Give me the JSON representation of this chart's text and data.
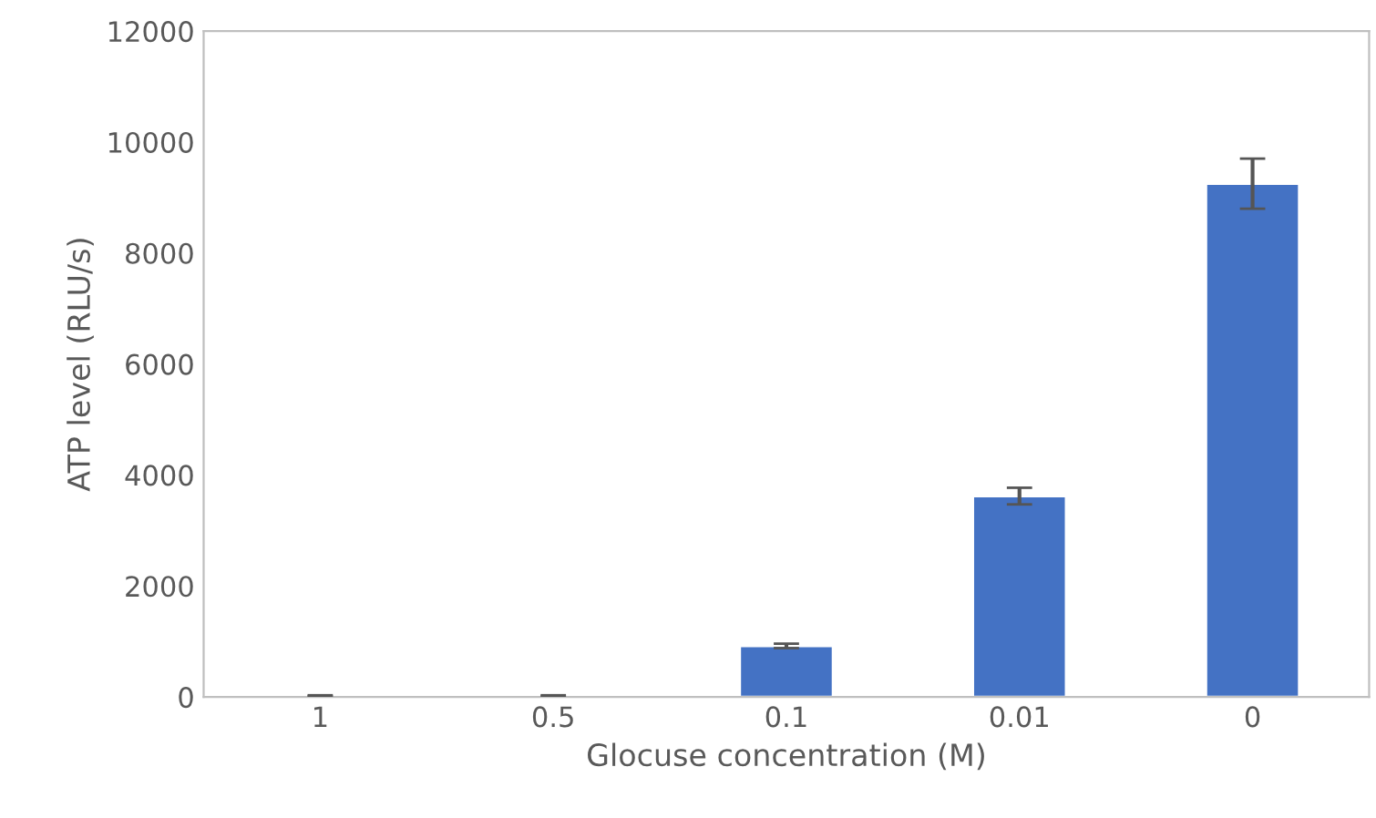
{
  "chart_data": {
    "type": "bar",
    "xlabel": "Glocuse concentration (M)",
    "ylabel": "ATP level (RLU/s)",
    "categories": [
      "1",
      "0.5",
      "0.1",
      "0.01",
      "0"
    ],
    "values": [
      20,
      20,
      920,
      3620,
      9250
    ],
    "errors": [
      10,
      10,
      40,
      150,
      450
    ],
    "color": "#4472c4",
    "ylim": [
      0,
      12000
    ],
    "yticks": [
      0,
      2000,
      4000,
      6000,
      8000,
      10000,
      12000
    ],
    "grid": false
  }
}
